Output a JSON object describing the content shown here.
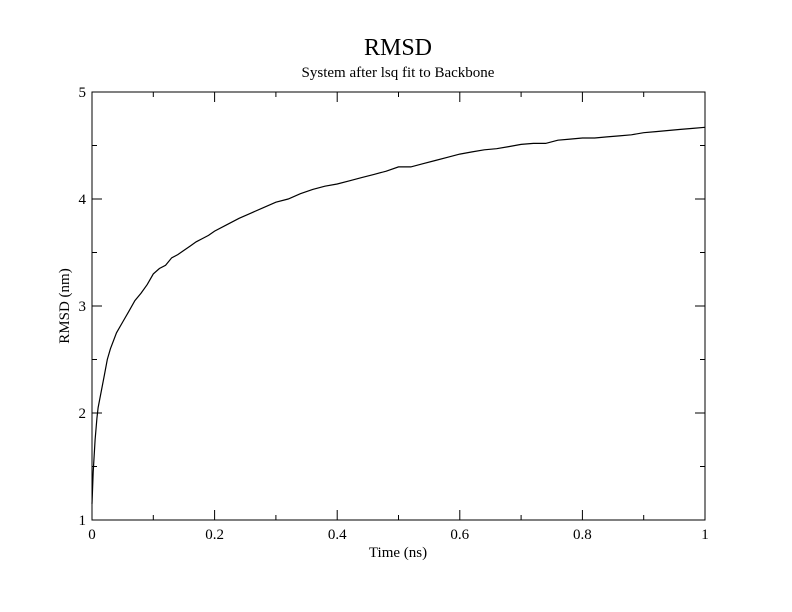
{
  "chart_data": {
    "type": "line",
    "title": "RMSD",
    "subtitle": "System after lsq fit to Backbone",
    "xlabel": "Time (ns)",
    "ylabel": "RMSD (nm)",
    "xlim": [
      0,
      1
    ],
    "ylim": [
      1,
      5
    ],
    "x_ticks": [
      "0",
      "0.2",
      "0.4",
      "0.6",
      "0.8",
      "1"
    ],
    "y_ticks": [
      "1",
      "2",
      "3",
      "4",
      "5"
    ],
    "grid": false,
    "legend": "none",
    "line_color": "#000000",
    "series": [
      {
        "x": [
          0,
          0.002,
          0.005,
          0.008,
          0.01,
          0.015,
          0.02,
          0.025,
          0.03,
          0.04,
          0.05,
          0.06,
          0.07,
          0.08,
          0.09,
          0.1,
          0.11,
          0.12,
          0.13,
          0.14,
          0.15,
          0.16,
          0.17,
          0.18,
          0.19,
          0.2,
          0.22,
          0.24,
          0.26,
          0.28,
          0.3,
          0.32,
          0.34,
          0.36,
          0.38,
          0.4,
          0.42,
          0.44,
          0.46,
          0.48,
          0.5,
          0.52,
          0.54,
          0.56,
          0.58,
          0.6,
          0.62,
          0.64,
          0.66,
          0.68,
          0.7,
          0.72,
          0.74,
          0.76,
          0.78,
          0.8,
          0.82,
          0.84,
          0.86,
          0.88,
          0.9,
          0.92,
          0.94,
          0.96,
          0.98,
          1.0
        ],
        "y": [
          1.15,
          1.45,
          1.75,
          1.95,
          2.05,
          2.2,
          2.35,
          2.5,
          2.6,
          2.75,
          2.85,
          2.95,
          3.05,
          3.12,
          3.2,
          3.3,
          3.35,
          3.38,
          3.45,
          3.48,
          3.52,
          3.56,
          3.6,
          3.63,
          3.66,
          3.7,
          3.76,
          3.82,
          3.87,
          3.92,
          3.97,
          4.0,
          4.05,
          4.09,
          4.12,
          4.14,
          4.17,
          4.2,
          4.23,
          4.26,
          4.3,
          4.3,
          4.33,
          4.36,
          4.39,
          4.42,
          4.44,
          4.46,
          4.47,
          4.49,
          4.51,
          4.52,
          4.52,
          4.55,
          4.56,
          4.57,
          4.57,
          4.58,
          4.59,
          4.6,
          4.62,
          4.63,
          4.64,
          4.65,
          4.66,
          4.67
        ]
      }
    ]
  }
}
